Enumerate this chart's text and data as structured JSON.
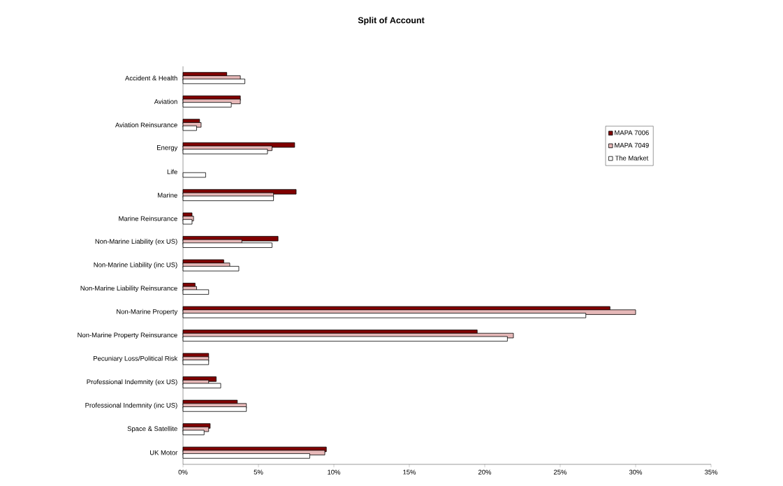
{
  "chart_data": {
    "type": "bar",
    "orientation": "horizontal",
    "title": "Split of Account",
    "categories": [
      "Accident & Health",
      "Aviation",
      "Aviation Reinsurance",
      "Energy",
      "Life",
      "Marine",
      "Marine Reinsurance",
      "Non-Marine Liability (ex US)",
      "Non-Marine Liability (inc US)",
      "Non-Marine Liability Reinsurance",
      "Non-Marine Property",
      "Non-Marine Property Reinsurance",
      "Pecuniary Loss/Political Risk",
      "Professional Indemnity (ex US)",
      "Professional Indemnity (inc US)",
      "Space & Satellite",
      "UK Motor"
    ],
    "series": [
      {
        "name": "MAPA 7006",
        "color": "#800000",
        "values": [
          2.9,
          3.8,
          1.1,
          7.4,
          null,
          7.5,
          0.6,
          6.3,
          2.7,
          0.8,
          28.3,
          19.5,
          1.7,
          2.2,
          3.6,
          1.8,
          9.5
        ]
      },
      {
        "name": "MAPA 7049",
        "color": "#e6b8b8",
        "values": [
          3.8,
          3.8,
          1.2,
          5.9,
          null,
          6.0,
          0.7,
          3.9,
          3.1,
          0.9,
          30.0,
          21.9,
          1.7,
          1.7,
          4.2,
          1.7,
          9.4
        ]
      },
      {
        "name": "The Market",
        "color": "#ffffff",
        "values": [
          4.1,
          3.2,
          0.9,
          5.6,
          1.5,
          6.0,
          0.6,
          5.9,
          3.7,
          1.7,
          26.7,
          21.5,
          1.7,
          2.5,
          4.2,
          1.4,
          8.4
        ]
      }
    ],
    "xlim": [
      0,
      35
    ],
    "xticks": [
      {
        "value": 0,
        "label": "0%"
      },
      {
        "value": 5,
        "label": "5%"
      },
      {
        "value": 10,
        "label": "10%"
      },
      {
        "value": 15,
        "label": "15%"
      },
      {
        "value": 20,
        "label": "20%"
      },
      {
        "value": 25,
        "label": "25%"
      },
      {
        "value": 30,
        "label": "30%"
      },
      {
        "value": 35,
        "label": "35%"
      }
    ],
    "legend": "right",
    "grid": false
  }
}
